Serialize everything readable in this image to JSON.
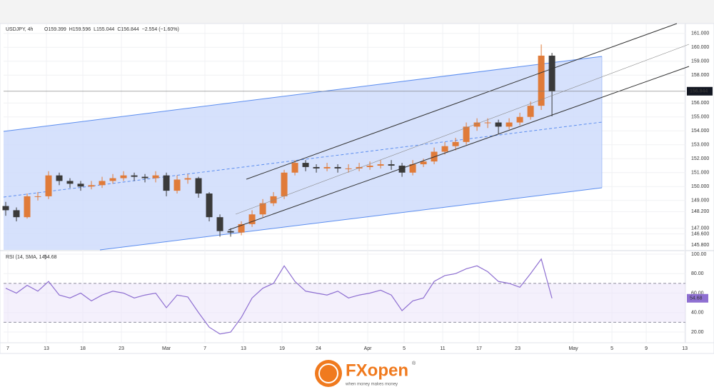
{
  "chart_data": [
    {
      "type": "candlestick",
      "title": "USDJPY, 4h",
      "ohlc_labels": [
        "O159.399",
        "H159.596",
        "L155.044",
        "C156.844",
        "−2.554 (−1.60%)"
      ],
      "up_color": "#e07b39",
      "down_color": "#3a3a3a",
      "grid": true,
      "x": [
        1,
        6,
        11,
        16,
        21,
        26,
        31,
        36,
        41,
        46,
        51,
        56,
        61,
        66,
        71,
        76,
        81,
        86,
        91,
        96,
        101,
        106,
        111,
        116,
        121,
        126,
        131,
        136,
        141,
        146,
        151,
        156,
        161,
        166,
        171,
        176,
        181,
        186,
        191,
        196,
        201,
        206,
        211,
        216,
        221,
        226,
        231,
        236,
        241,
        246,
        251,
        256
      ],
      "open": [
        148.6,
        148.3,
        147.8,
        149.3,
        149.3,
        150.8,
        150.4,
        150.2,
        150.0,
        150.1,
        150.4,
        150.6,
        150.8,
        150.7,
        150.6,
        150.8,
        149.7,
        150.5,
        150.6,
        149.5,
        147.8,
        146.8,
        146.7,
        147.3,
        148.0,
        148.8,
        149.3,
        151.0,
        151.7,
        151.4,
        151.3,
        151.4,
        151.3,
        151.3,
        151.4,
        151.5,
        151.6,
        151.5,
        151.0,
        151.6,
        151.8,
        152.5,
        152.9,
        153.2,
        154.3,
        154.6,
        154.6,
        154.3,
        154.6,
        155.0,
        155.8,
        159.399
      ],
      "high": [
        148.9,
        148.5,
        149.5,
        149.6,
        151.1,
        151.0,
        150.6,
        150.4,
        150.4,
        150.7,
        150.9,
        151.1,
        151.0,
        150.9,
        151.1,
        151.0,
        150.8,
        150.9,
        150.7,
        149.6,
        148.0,
        147.0,
        147.5,
        148.3,
        149.1,
        149.6,
        151.2,
        151.9,
        151.9,
        151.6,
        151.7,
        151.6,
        151.6,
        151.7,
        151.8,
        151.9,
        151.9,
        151.7,
        151.9,
        152.0,
        152.8,
        153.2,
        153.5,
        154.6,
        154.9,
        154.9,
        154.8,
        154.9,
        155.3,
        156.1,
        160.2,
        159.596
      ],
      "low": [
        147.9,
        147.5,
        147.7,
        149.0,
        149.1,
        150.1,
        149.9,
        149.7,
        149.8,
        149.9,
        150.2,
        150.4,
        150.4,
        150.3,
        150.3,
        149.3,
        149.5,
        150.2,
        149.2,
        147.5,
        146.4,
        146.4,
        146.5,
        147.1,
        147.8,
        148.6,
        149.1,
        150.8,
        151.1,
        151.0,
        151.1,
        151.0,
        151.0,
        151.1,
        151.2,
        151.3,
        151.2,
        150.7,
        150.8,
        151.4,
        151.6,
        152.3,
        152.6,
        153.0,
        154.0,
        154.2,
        153.8,
        154.1,
        154.4,
        154.8,
        155.5,
        155.044
      ],
      "close": [
        148.3,
        147.8,
        149.3,
        149.3,
        150.8,
        150.4,
        150.2,
        150.0,
        150.1,
        150.4,
        150.6,
        150.8,
        150.7,
        150.6,
        150.8,
        149.7,
        150.5,
        150.6,
        149.5,
        147.8,
        146.8,
        146.7,
        147.3,
        148.0,
        148.8,
        149.3,
        151.0,
        151.7,
        151.4,
        151.3,
        151.4,
        151.3,
        151.3,
        151.4,
        151.5,
        151.6,
        151.5,
        151.0,
        151.6,
        151.8,
        152.5,
        152.9,
        153.2,
        154.3,
        154.6,
        154.6,
        154.3,
        154.6,
        155.0,
        155.8,
        159.399,
        156.844
      ],
      "ylim": [
        145.45,
        161.6
      ],
      "yticks": [
        {
          "value": 161,
          "label": "161.000"
        },
        {
          "value": 160,
          "label": "160.000"
        },
        {
          "value": 159,
          "label": "159.000"
        },
        {
          "value": 158,
          "label": "158.000"
        },
        {
          "value": 156,
          "label": "156.000"
        },
        {
          "value": 155,
          "label": "155.000"
        },
        {
          "value": 154,
          "label": "154.000"
        },
        {
          "value": 153,
          "label": "153.000"
        },
        {
          "value": 152,
          "label": "152.000"
        },
        {
          "value": 151,
          "label": "151.000"
        },
        {
          "value": 150,
          "label": "150.000"
        },
        {
          "value": 149,
          "label": "149.000"
        },
        {
          "value": 148.2,
          "label": "148.200"
        },
        {
          "value": 147,
          "label": "147.000"
        },
        {
          "value": 146.6,
          "label": "146.600"
        },
        {
          "value": 145.8,
          "label": "145.800"
        }
      ],
      "xlim": [
        0,
        318.3
      ],
      "xticks": [
        {
          "value": 2,
          "label": "7"
        },
        {
          "value": 20,
          "label": "13"
        },
        {
          "value": 37,
          "label": "18"
        },
        {
          "value": 55,
          "label": "23"
        },
        {
          "value": 76,
          "label": "Mar"
        },
        {
          "value": 94,
          "label": "7"
        },
        {
          "value": 112,
          "label": "13"
        },
        {
          "value": 130,
          "label": "19"
        },
        {
          "value": 147,
          "label": "24"
        },
        {
          "value": 170,
          "label": "Apr"
        },
        {
          "value": 187,
          "label": "5"
        },
        {
          "value": 205,
          "label": "11"
        },
        {
          "value": 222,
          "label": "17"
        },
        {
          "value": 240,
          "label": "23"
        },
        {
          "value": 266,
          "label": "May"
        },
        {
          "value": 284,
          "label": "5"
        },
        {
          "value": 300,
          "label": "9"
        },
        {
          "value": 318,
          "label": "13"
        }
      ]
    },
    {
      "type": "line",
      "title": "RSI (14, SMA, 14)",
      "color": "#8e6fd1",
      "x": [
        1,
        6,
        11,
        16,
        21,
        26,
        31,
        36,
        41,
        46,
        51,
        56,
        61,
        66,
        71,
        76,
        81,
        86,
        91,
        96,
        101,
        106,
        111,
        116,
        121,
        126,
        131,
        136,
        141,
        146,
        151,
        156,
        161,
        166,
        171,
        176,
        181,
        186,
        191,
        196,
        201,
        206,
        211,
        216,
        221,
        226,
        231,
        236,
        241,
        246,
        251,
        256
      ],
      "values": [
        65,
        60,
        68,
        62,
        72,
        58,
        55,
        60,
        52,
        58,
        62,
        60,
        55,
        58,
        60,
        45,
        58,
        56,
        40,
        25,
        18,
        20,
        35,
        55,
        65,
        70,
        88,
        72,
        62,
        60,
        58,
        62,
        55,
        58,
        60,
        63,
        58,
        42,
        52,
        55,
        72,
        78,
        80,
        85,
        88,
        82,
        72,
        70,
        66,
        80,
        95,
        54.68
      ],
      "reference_lines": [
        70,
        30
      ],
      "ylim": [
        10.5,
        102.9
      ],
      "yticks": [
        {
          "value": 100,
          "label": "100.00"
        },
        {
          "value": 80,
          "label": "80.00"
        },
        {
          "value": 60,
          "label": "60.00"
        },
        {
          "value": 40,
          "label": "40.00"
        },
        {
          "value": 20,
          "label": "20.00"
        }
      ]
    }
  ],
  "footer": {
    "brand": "FXopen",
    "registered": "®",
    "tagline": "when money makes money"
  }
}
